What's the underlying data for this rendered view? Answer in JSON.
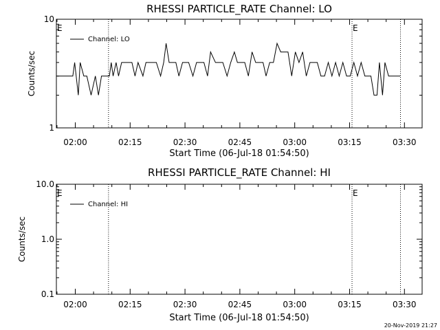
{
  "footer_timestamp": "20-Nov-2019 21:27",
  "chart_data": [
    {
      "type": "line",
      "title": "RHESSI PARTICLE_RATE Channel: LO",
      "xlabel": "Start Time (06-Jul-18 01:54:50)",
      "ylabel": "Counts/sec",
      "yscale": "log",
      "xlim": [
        "01:54:50",
        "03:34:50"
      ],
      "ylim": [
        1,
        10
      ],
      "x_ticks": [
        "02:00",
        "02:15",
        "02:30",
        "02:45",
        "03:00",
        "03:15",
        "03:30"
      ],
      "y_ticks": [
        "1",
        "10"
      ],
      "legend": {
        "position": "top-left",
        "entries": [
          "Channel: LO"
        ]
      },
      "event_markers": [
        {
          "time": "01:54:50",
          "label": "E"
        },
        {
          "time": "03:15:40",
          "label": "E"
        }
      ],
      "vlines": [
        "02:09:05",
        "03:15:40",
        "03:28:55"
      ],
      "series": [
        {
          "name": "Channel: LO",
          "color": "#000000",
          "x": [
            "01:54:50",
            "01:58:20",
            "01:58:50",
            "01:59:20",
            "01:59:50",
            "02:00:50",
            "02:01:20",
            "02:02:20",
            "02:03:10",
            "02:04:20",
            "02:05:30",
            "02:06:20",
            "02:07:10",
            "02:08:20",
            "02:09:20",
            "02:09:50",
            "02:10:20",
            "02:11:10",
            "02:11:50",
            "02:12:40",
            "02:15:30",
            "02:16:20",
            "02:17:10",
            "02:18:30",
            "02:19:20",
            "02:20:10",
            "02:21:20",
            "02:22:10",
            "02:23:20",
            "02:24:10",
            "02:24:50",
            "02:25:40",
            "02:26:30",
            "02:27:30",
            "02:28:20",
            "02:29:20",
            "02:30:10",
            "02:31:00",
            "02:32:10",
            "02:33:10",
            "02:34:10",
            "02:35:10",
            "02:36:10",
            "02:37:00",
            "02:38:20",
            "02:39:20",
            "02:40:20",
            "02:41:30",
            "02:42:30",
            "02:43:30",
            "02:44:20",
            "02:45:20",
            "02:46:20",
            "02:47:20",
            "02:48:20",
            "02:49:20",
            "02:50:20",
            "02:51:20",
            "02:52:10",
            "02:53:10",
            "02:54:10",
            "02:55:10",
            "02:56:10",
            "02:57:10",
            "02:58:10",
            "02:59:10",
            "03:00:10",
            "03:01:10",
            "03:02:10",
            "03:03:10",
            "03:04:10",
            "03:05:10",
            "03:06:10",
            "03:07:10",
            "03:08:10",
            "03:09:10",
            "03:10:10",
            "03:11:10",
            "03:12:10",
            "03:13:10",
            "03:14:10",
            "03:15:10",
            "03:16:10",
            "03:17:10",
            "03:18:10",
            "03:19:10",
            "03:20:10",
            "03:20:50",
            "03:21:40",
            "03:22:30",
            "03:23:10",
            "03:24:00",
            "03:24:40",
            "03:25:40",
            "03:28:50"
          ],
          "values": [
            3,
            3,
            3,
            3,
            4,
            2,
            4,
            3,
            3,
            2,
            3,
            2,
            3,
            3,
            3,
            4,
            3,
            4,
            3,
            4,
            4,
            3,
            4,
            3,
            4,
            4,
            4,
            4,
            3,
            4,
            6,
            4,
            4,
            4,
            3,
            4,
            4,
            4,
            3,
            4,
            4,
            4,
            3,
            5,
            4,
            4,
            4,
            3,
            4,
            5,
            4,
            4,
            4,
            3,
            5,
            4,
            4,
            4,
            3,
            4,
            4,
            6,
            5,
            5,
            5,
            3,
            5,
            4,
            5,
            3,
            4,
            4,
            4,
            3,
            3,
            4,
            3,
            4,
            3,
            4,
            3,
            3,
            4,
            3,
            4,
            3,
            3,
            3,
            2,
            2,
            4,
            2,
            4,
            3,
            3
          ]
        }
      ]
    },
    {
      "type": "line",
      "title": "RHESSI PARTICLE_RATE Channel: HI",
      "xlabel": "Start Time (06-Jul-18 01:54:50)",
      "ylabel": "Counts/sec",
      "yscale": "log",
      "xlim": [
        "01:54:50",
        "03:34:50"
      ],
      "ylim": [
        0.1,
        10
      ],
      "x_ticks": [
        "02:00",
        "02:15",
        "02:30",
        "02:45",
        "03:00",
        "03:15",
        "03:30"
      ],
      "y_ticks": [
        "0.1",
        "1.0",
        "10.0"
      ],
      "legend": {
        "position": "top-left",
        "entries": [
          "Channel: HI"
        ]
      },
      "event_markers": [
        {
          "time": "01:54:50",
          "label": "E"
        },
        {
          "time": "03:15:40",
          "label": "E"
        }
      ],
      "vlines": [
        "02:09:05",
        "03:15:40",
        "03:28:55"
      ],
      "series": [
        {
          "name": "Channel: HI",
          "color": "#000000",
          "x": [],
          "values": []
        }
      ]
    }
  ]
}
